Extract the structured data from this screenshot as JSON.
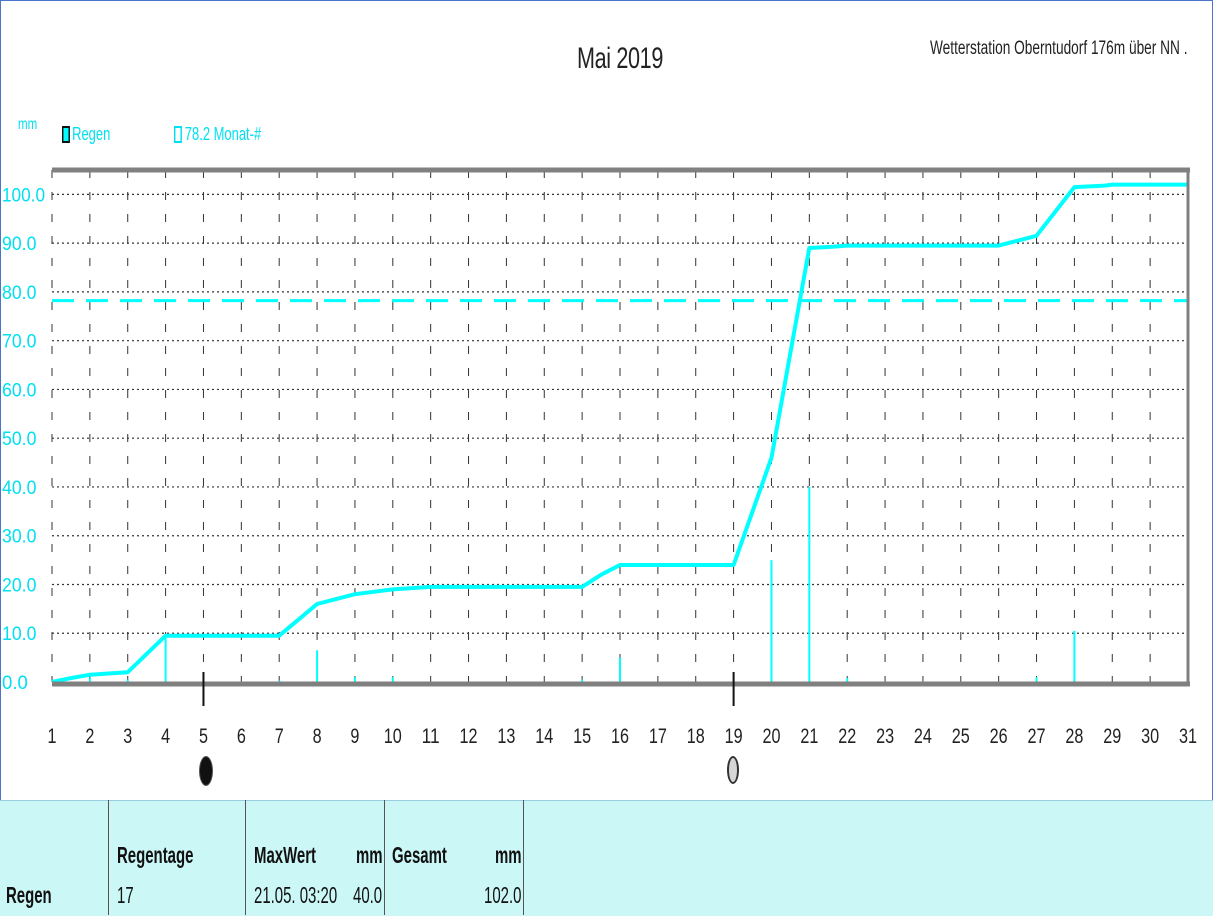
{
  "title": "Mai 2019",
  "station": "Wetterstation Oberntudorf 176m über NN  .",
  "unit_label": "mm",
  "legend": {
    "rain_label": "Regen",
    "avg_label": "78.2 Monat-#"
  },
  "colors": {
    "accent": "#00FFFF",
    "grid": "#333333",
    "axis": "#808080"
  },
  "chart_data": {
    "type": "line",
    "title": "Mai 2019",
    "ylabel": "mm",
    "xlabel": "",
    "ylim": [
      0,
      105
    ],
    "xlim": [
      1,
      31
    ],
    "y_ticks": [
      "0.0",
      "10.0",
      "20.0",
      "30.0",
      "40.0",
      "50.0",
      "60.0",
      "70.0",
      "80.0",
      "90.0",
      "100.0"
    ],
    "x_ticks": [
      "1",
      "2",
      "3",
      "4",
      "5",
      "6",
      "7",
      "8",
      "9",
      "10",
      "11",
      "12",
      "13",
      "14",
      "15",
      "16",
      "17",
      "18",
      "19",
      "20",
      "21",
      "22",
      "23",
      "24",
      "25",
      "26",
      "27",
      "28",
      "29",
      "30",
      "31"
    ],
    "grid": true,
    "legend_position": "top-left",
    "series": [
      {
        "name": "Regen",
        "kind": "cumulative-line",
        "points": [
          [
            1,
            0
          ],
          [
            1.5,
            0.8
          ],
          [
            2,
            1.5
          ],
          [
            3,
            2.0
          ],
          [
            4,
            9.5
          ],
          [
            7,
            9.5
          ],
          [
            8,
            16.0
          ],
          [
            8.5,
            17.0
          ],
          [
            9,
            18.0
          ],
          [
            10,
            19.0
          ],
          [
            11,
            19.5
          ],
          [
            15,
            19.5
          ],
          [
            15.5,
            22.0
          ],
          [
            16,
            24.0
          ],
          [
            19,
            24.0
          ],
          [
            20,
            46.0
          ],
          [
            21,
            89.0
          ],
          [
            21.5,
            89.2
          ],
          [
            22,
            89.5
          ],
          [
            26,
            89.5
          ],
          [
            26.5,
            90.5
          ],
          [
            27,
            91.5
          ],
          [
            28,
            101.5
          ],
          [
            28.8,
            101.8
          ],
          [
            29,
            102.0
          ],
          [
            31,
            102.0
          ]
        ]
      },
      {
        "name": "Regen",
        "kind": "daily-bars",
        "x": [
          2,
          3,
          4,
          7,
          8,
          9,
          10,
          15,
          16,
          20,
          21,
          22,
          27,
          28
        ],
        "values": [
          0.8,
          0.5,
          9.0,
          0.3,
          6.5,
          1.0,
          1.0,
          0.5,
          5.0,
          25.0,
          40.0,
          0.8,
          1.0,
          10.5
        ]
      },
      {
        "name": "78.2 Monat-#",
        "kind": "reference-line",
        "value": 78.2
      }
    ],
    "markers": [
      {
        "x": 5,
        "symbol": "new-moon"
      },
      {
        "x": 19,
        "symbol": "full-moon"
      }
    ]
  },
  "stats": {
    "row_label": "Regen",
    "col_regentage": "Regentage",
    "col_maxwert": "MaxWert",
    "col_mm1": "mm",
    "col_gesamt": "Gesamt",
    "col_mm2": "mm",
    "regentage": "17",
    "max_date": "21.05.  03:20",
    "max_value": "40.0",
    "total": "102.0"
  }
}
